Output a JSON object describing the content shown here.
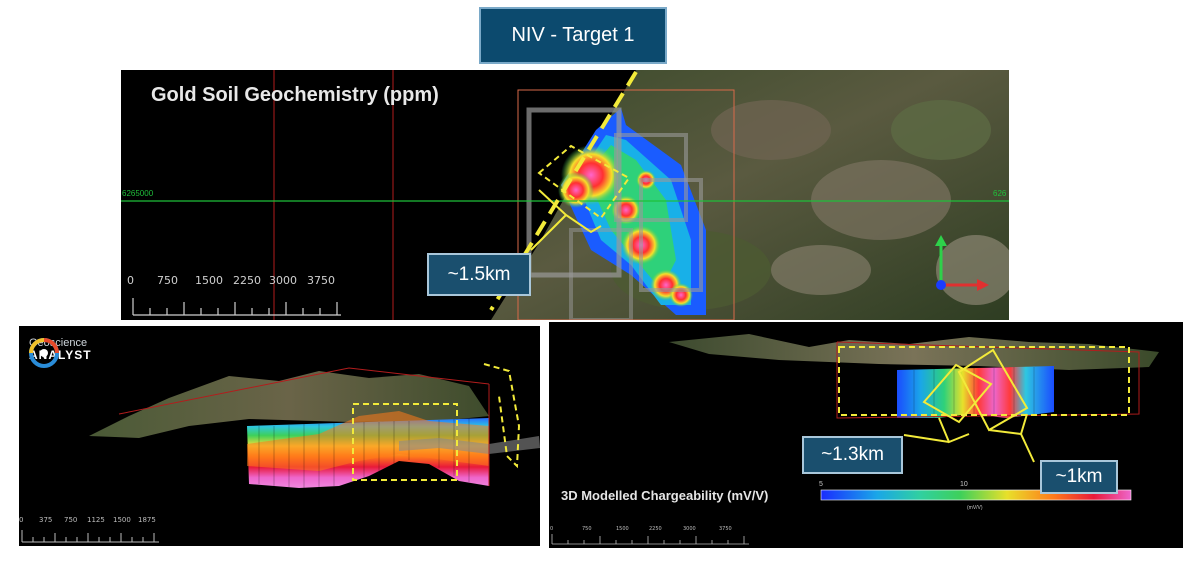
{
  "title": "NIV - Target 1",
  "panel_top": {
    "title": "Gold Soil Geochemistry (ppm)",
    "easting_left": "6265000",
    "easting_right": "626",
    "scale_labels": [
      "0",
      "750",
      "1500",
      "2250",
      "3000",
      "3750"
    ],
    "callout": "~1.5km",
    "colors": {
      "outline": "#f2ea3a"
    }
  },
  "panel_left": {
    "logo_line1": "Geoscience",
    "logo_line2": "ANALYST",
    "scale_labels": [
      "0",
      "375",
      "750",
      "1125",
      "1500",
      "1875"
    ]
  },
  "panel_right": {
    "legend_title": "3D Modelled Chargeability (mV/V)",
    "legend_ticks": [
      "5",
      "10"
    ],
    "legend_unit": "(mV/V)",
    "scale_labels": [
      "0",
      "750",
      "1500",
      "2250",
      "3000",
      "3750"
    ],
    "callout_a": "~1.3km",
    "callout_b": "~1km"
  }
}
